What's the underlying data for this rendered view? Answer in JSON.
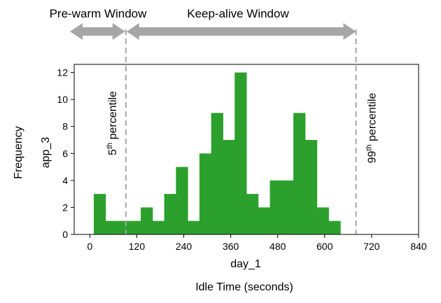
{
  "chart_data": {
    "type": "bar",
    "subtype": "histogram",
    "bin_width": 30,
    "bin_starts": [
      0,
      30,
      60,
      90,
      120,
      150,
      180,
      210,
      240,
      270,
      300,
      330,
      360,
      390,
      420,
      450,
      480,
      510,
      540,
      570,
      600,
      630,
      660,
      690
    ],
    "values": [
      3,
      1,
      1,
      1,
      2,
      1,
      3,
      5,
      1,
      6,
      9,
      7,
      12,
      3,
      2,
      4,
      4,
      9,
      7,
      2,
      1,
      0,
      0,
      0
    ],
    "bin_range": [
      10,
      730
    ],
    "bar_color": "#2ca02c",
    "xlim": [
      -40,
      840
    ],
    "ylim": [
      0,
      12.6
    ],
    "xticks": [
      0,
      120,
      240,
      360,
      480,
      600,
      720,
      840
    ],
    "yticks": [
      0,
      2,
      4,
      6,
      8,
      10,
      12
    ],
    "xlabel": "day_1",
    "ylabel": "app_3",
    "outer_xlabel": "Idle Time (seconds)",
    "outer_ylabel": "Frequency",
    "grid": false,
    "percentiles": [
      {
        "label_base": "5",
        "label_sup": "th",
        "label_rest": " percentile",
        "x": 92
      },
      {
        "label_base": "99",
        "label_sup": "th",
        "label_rest": " percentile",
        "x": 680
      }
    ],
    "windows": [
      {
        "label": "Pre-warm Window"
      },
      {
        "label": "Keep-alive Window"
      }
    ]
  }
}
